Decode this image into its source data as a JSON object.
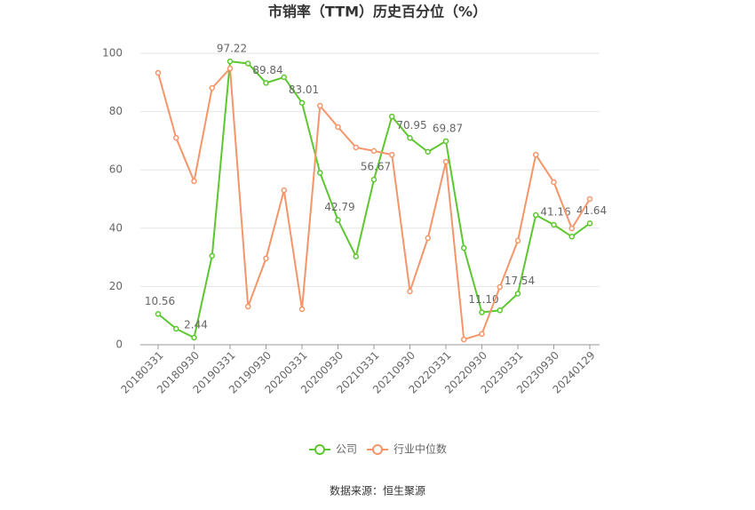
{
  "chart_data": {
    "type": "line",
    "title": "市销率（TTM）历史百分位（%）",
    "source": "数据来源：恒生聚源",
    "categories": [
      "20180331",
      null,
      "20180930",
      null,
      "20190331",
      null,
      "20190930",
      null,
      "20200331",
      null,
      "20200930",
      null,
      "20210331",
      null,
      "20210930",
      null,
      "20220331",
      null,
      "20220930",
      null,
      "20230331",
      null,
      "20230930",
      null,
      "20240129"
    ],
    "series": [
      {
        "name": "公司",
        "color": "#5cc72e",
        "values": [
          10.56,
          5.5,
          2.44,
          30.5,
          97.22,
          96.5,
          89.84,
          91.8,
          83.01,
          59,
          42.79,
          30.3,
          56.67,
          78.3,
          70.95,
          66.2,
          69.87,
          33.2,
          11.1,
          11.8,
          17.54,
          44.5,
          41.16,
          37.1,
          41.64
        ],
        "value_labels": [
          "10.56",
          null,
          "2.44",
          null,
          "97.22",
          null,
          "89.84",
          null,
          "83.01",
          null,
          "42.79",
          null,
          "56.67",
          null,
          "70.95",
          null,
          "69.87",
          null,
          "11.10",
          null,
          "17.54",
          null,
          "41.16",
          null,
          "41.64"
        ]
      },
      {
        "name": "行业中位数",
        "color": "#f4956a",
        "values": [
          93.3,
          71.0,
          56.1,
          88.1,
          94.8,
          13.1,
          29.6,
          53.0,
          12.2,
          82.0,
          74.7,
          67.7,
          66.5,
          65.2,
          18.3,
          36.6,
          62.8,
          1.8,
          3.7,
          19.8,
          35.7,
          65.2,
          55.8,
          39.9,
          50.0
        ]
      }
    ],
    "ylim": [
      0,
      100
    ],
    "yticks": [
      0,
      20,
      40,
      60,
      80,
      100
    ],
    "grid": true,
    "legend": "bottom"
  }
}
